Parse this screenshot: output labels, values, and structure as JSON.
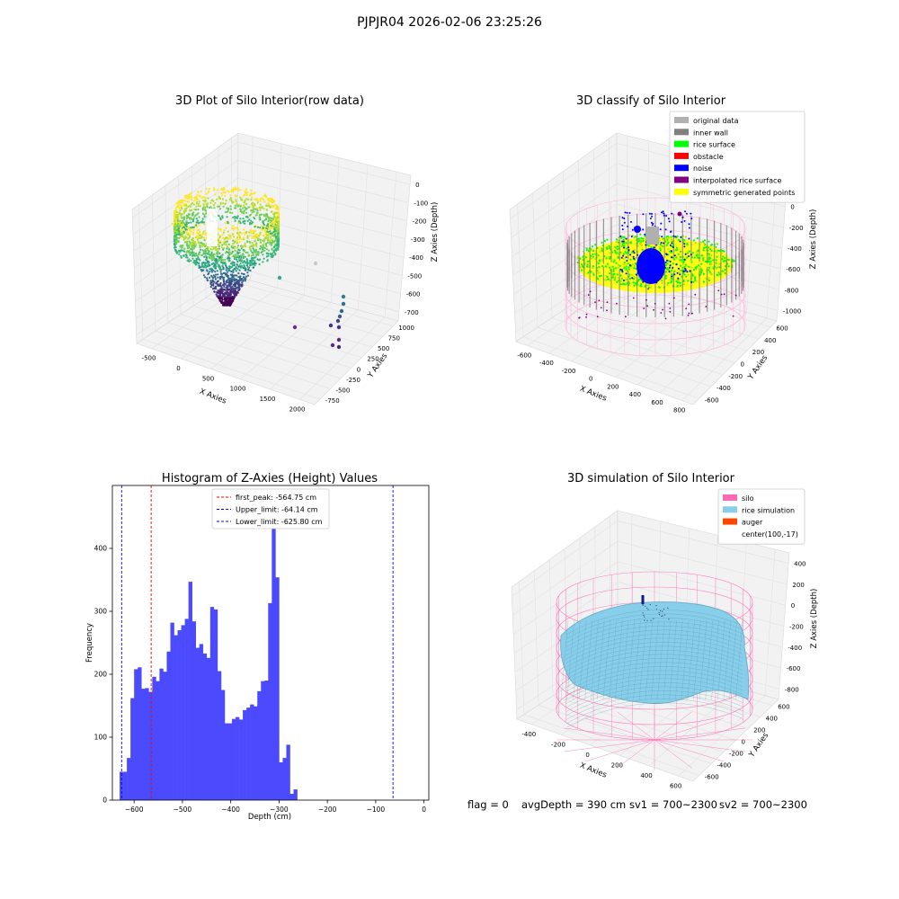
{
  "suptitle": "PJPJR04 2026-02-06 23:25:26",
  "footer": {
    "flag": "flag = 0",
    "avg": "avgDepth = 390 cm",
    "sv1": "sv1 = 700~2300",
    "sv2": "sv2 = 700~2300"
  },
  "colors": {
    "hist_bar": "#4b4bfd",
    "first_peak_line": "#ff0000",
    "limit_lines": "#0000ff",
    "pane": "#f2f2f2",
    "silo": "#ff69b4",
    "rice_simulation": "#87ceeb",
    "auger": "#ff4500",
    "inner_wall": "#808080",
    "rice_surface": "#00ff00",
    "obstacle": "#ff0000",
    "noise": "#0000ff",
    "interpolated_rice_surface": "#800080",
    "symmetric_generated_points": "#ffff00",
    "original_data": "#b0b0b0"
  },
  "chart_data": [
    {
      "type": "scatter3d",
      "title": "3D Plot of Silo Interior(row data)",
      "xlabel": "X Axies",
      "ylabel": "Y Axies",
      "zlabel": "Z Axies (Depth)",
      "x_ticks": [
        "-500",
        "0",
        "500",
        "1000",
        "1500",
        "2000"
      ],
      "y_ticks": [
        "1000",
        "750",
        "500",
        "250",
        "0",
        "-250",
        "-500",
        "-750"
      ],
      "z_ticks": [
        "0",
        "-100",
        "-200",
        "-300",
        "-400",
        "-500",
        "-600",
        "-700"
      ],
      "grid": true
    },
    {
      "type": "scatter3d",
      "title": "3D classify of Silo Interior",
      "xlabel": "X Axies",
      "ylabel": "Y Axies",
      "zlabel": "Z Axies (Depth)",
      "x_ticks": [
        "-600",
        "-400",
        "-200",
        "0",
        "200",
        "400",
        "600",
        "800"
      ],
      "y_ticks": [
        "600",
        "400",
        "200",
        "0",
        "-200",
        "-400",
        "-600"
      ],
      "z_ticks": [
        "200",
        "0",
        "-200",
        "-400",
        "-600",
        "-800",
        "-1000"
      ],
      "legend": [
        "original data",
        "inner wall",
        "rice surface",
        "obstacle",
        "noise",
        "interpolated rice surface",
        "symmetric generated points"
      ],
      "legend_position": "top-right",
      "grid": true
    },
    {
      "type": "bar",
      "title": "Histogram of Z-Axies (Height) Values",
      "xlabel": "Depth (cm)",
      "ylabel": "Frequency",
      "xlim": [
        -645,
        10
      ],
      "ylim": [
        0,
        500
      ],
      "x_ticks": [
        -600,
        -500,
        -400,
        -300,
        -200,
        -100,
        0
      ],
      "y_ticks": [
        0,
        100,
        200,
        300,
        400
      ],
      "bin_start": -630,
      "bin_width": 7.5,
      "values": [
        45,
        45,
        67,
        162,
        208,
        211,
        177,
        178,
        172,
        196,
        189,
        209,
        204,
        236,
        282,
        262,
        270,
        278,
        288,
        347,
        284,
        242,
        248,
        233,
        226,
        307,
        303,
        205,
        175,
        122,
        122,
        129,
        132,
        128,
        143,
        147,
        152,
        149,
        173,
        189,
        190,
        313,
        474,
        354,
        60,
        67,
        88,
        10,
        17
      ],
      "vlines": [
        {
          "label": "first_peak: -564.75 cm",
          "x": -564.75,
          "color": "#ff0000"
        },
        {
          "label": "Upper_limit: -64.14 cm",
          "x": -64.14,
          "color": "#0000ff"
        },
        {
          "label": "Lower_limit: -625.80 cm",
          "x": -625.8,
          "color": "#0000ff"
        }
      ],
      "legend_position": "top-center",
      "grid": false
    },
    {
      "type": "surface3d",
      "title": "3D simulation of Silo Interior",
      "xlabel": "X Axies",
      "ylabel": "Y Axies",
      "zlabel": "Z Axies (Depth)",
      "x_ticks": [
        "-400",
        "-200",
        "0",
        "200",
        "400",
        "600"
      ],
      "y_ticks": [
        "600",
        "400",
        "200",
        "0",
        "-200",
        "-400",
        "-600"
      ],
      "z_ticks": [
        "400",
        "200",
        "0",
        "-200",
        "-400",
        "-600",
        "-800"
      ],
      "legend": [
        "silo",
        "rice simulation",
        "auger",
        "center(100,-17)"
      ],
      "legend_position": "top-right",
      "grid": true
    }
  ]
}
